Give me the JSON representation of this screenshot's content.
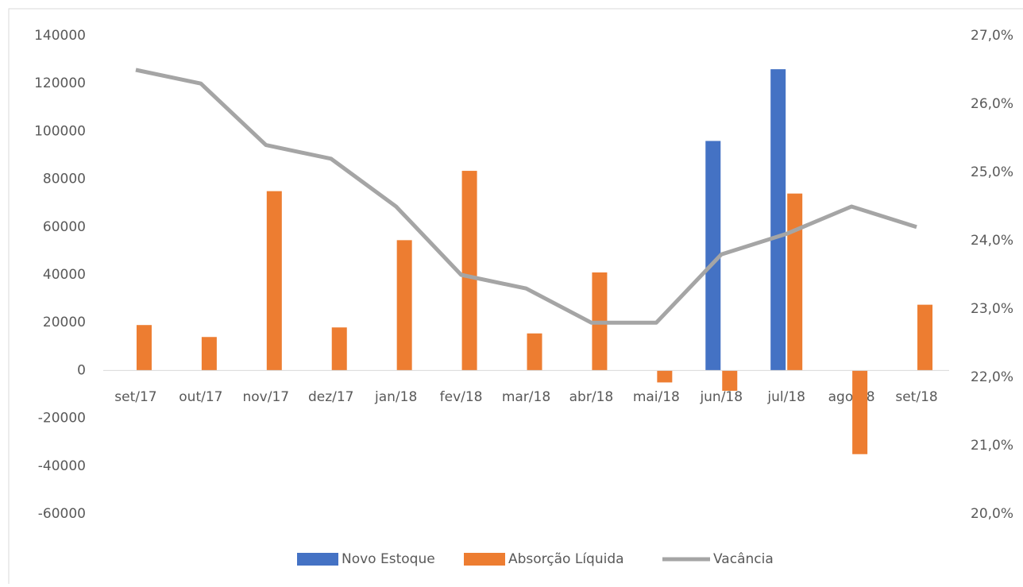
{
  "chart_data": {
    "type": "bar",
    "categories": [
      "set/17",
      "out/17",
      "nov/17",
      "dez/17",
      "jan/18",
      "fev/18",
      "mar/18",
      "abr/18",
      "mai/18",
      "jun/18",
      "jul/18",
      "ago/18",
      "set/18"
    ],
    "series": [
      {
        "name": "Novo Estoque",
        "color": "#4472c4",
        "type": "bar",
        "values": [
          null,
          null,
          null,
          null,
          null,
          null,
          null,
          null,
          null,
          96000,
          126000,
          null,
          null
        ]
      },
      {
        "name": "Absorção Líquida",
        "color": "#ed7d31",
        "type": "bar",
        "values": [
          19000,
          14000,
          75000,
          18000,
          54500,
          83500,
          15500,
          41000,
          -5000,
          -8500,
          74000,
          -35000,
          27500
        ]
      },
      {
        "name": "Vacância",
        "color": "#a5a5a5",
        "type": "line",
        "axis": "y2",
        "values": [
          26.5,
          26.3,
          25.4,
          25.2,
          24.5,
          23.5,
          23.3,
          22.8,
          22.8,
          23.8,
          24.1,
          24.5,
          24.2
        ]
      }
    ],
    "ylim": [
      -60000,
      140000
    ],
    "yticks": [
      -60000,
      -40000,
      -20000,
      0,
      20000,
      40000,
      60000,
      80000,
      100000,
      120000,
      140000
    ],
    "y2lim": [
      20,
      27
    ],
    "y2ticks": [
      {
        "value": 20,
        "label": "20,0%"
      },
      {
        "value": 21,
        "label": "21,0%"
      },
      {
        "value": 22,
        "label": "22,0%"
      },
      {
        "value": 23,
        "label": "23,0%"
      },
      {
        "value": 24,
        "label": "24,0%"
      },
      {
        "value": 25,
        "label": "25,0%"
      },
      {
        "value": 26,
        "label": "26,0%"
      },
      {
        "value": 27,
        "label": "27,0%"
      }
    ],
    "legend": "bottom"
  }
}
